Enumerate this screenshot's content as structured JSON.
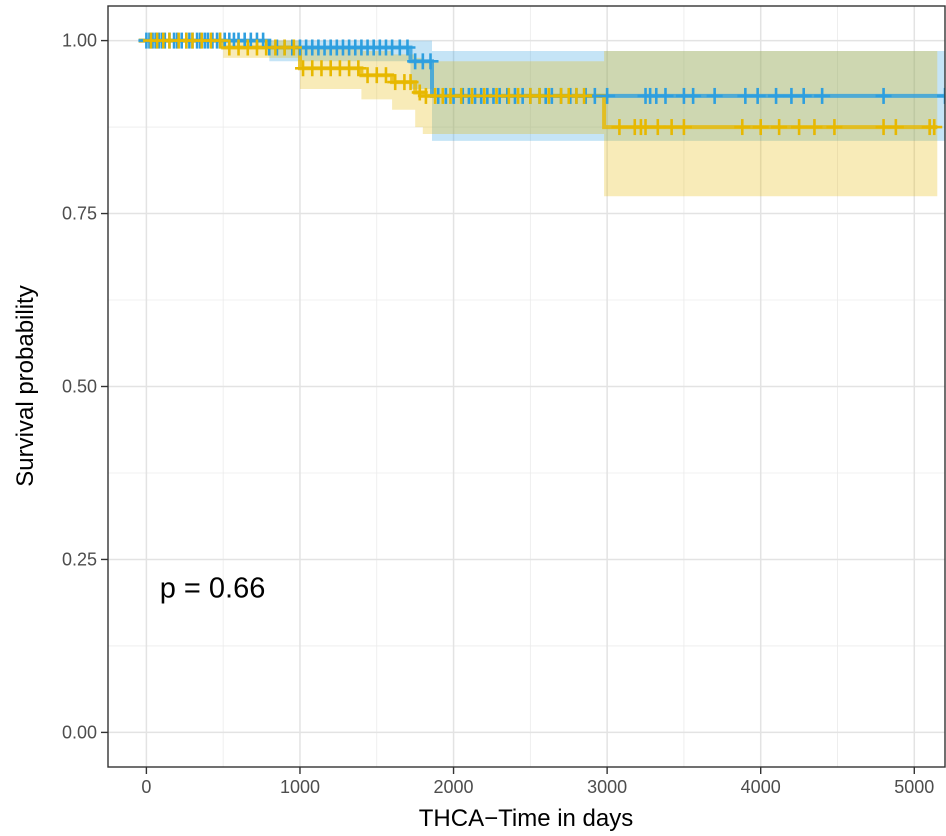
{
  "chart_data": {
    "type": "line",
    "xlabel": "THCA−Time in days",
    "ylabel": "Survival probability",
    "xlim": [
      -250,
      5200
    ],
    "ylim": [
      -0.05,
      1.05
    ],
    "x_ticks": [
      0,
      1000,
      2000,
      3000,
      4000,
      5000
    ],
    "x_tick_labels": [
      "0",
      "1000",
      "2000",
      "3000",
      "4000",
      "5000"
    ],
    "y_ticks": [
      0,
      0.25,
      0.5,
      0.75,
      1.0
    ],
    "y_tick_labels": [
      "0.00",
      "0.25",
      "0.50",
      "0.75",
      "1.00"
    ],
    "grid": true,
    "annotation": "p = 0.66",
    "annotation_at": [
      100,
      0.195
    ],
    "series": [
      {
        "color": "#2E9FDF",
        "band_color": "#2E9FDF",
        "steps": [
          [
            -50,
            1.0
          ],
          [
            800,
            0.99
          ],
          [
            1720,
            0.97
          ],
          [
            1860,
            0.92
          ],
          [
            5200,
            0.92
          ]
        ],
        "band": [
          [
            -50,
            1.0,
            1.0
          ],
          [
            800,
            0.97,
            1.0
          ],
          [
            1720,
            0.93,
            1.0
          ],
          [
            1860,
            0.855,
            0.985
          ],
          [
            5200,
            0.855,
            0.985
          ]
        ],
        "censor_x": [
          0,
          20,
          40,
          60,
          80,
          100,
          120,
          150,
          180,
          200,
          230,
          260,
          280,
          300,
          330,
          350,
          380,
          400,
          430,
          460,
          480,
          510,
          540,
          570,
          600,
          640,
          680,
          720,
          760,
          800,
          850,
          900,
          950,
          1000,
          1040,
          1080,
          1120,
          1160,
          1200,
          1240,
          1280,
          1320,
          1360,
          1400,
          1440,
          1480,
          1520,
          1560,
          1600,
          1650,
          1700,
          1750,
          1800,
          1850,
          1900,
          1950,
          2000,
          2060,
          2100,
          2140,
          2180,
          2220,
          2260,
          2300,
          2350,
          2400,
          2450,
          2500,
          2560,
          2600,
          2640,
          2700,
          2760,
          2800,
          2860,
          2920,
          3000,
          3250,
          3280,
          3320,
          3380,
          3500,
          3560,
          3700,
          3900,
          3980,
          4100,
          4200,
          4280,
          4400,
          4800,
          5200
        ]
      },
      {
        "color": "#E7B800",
        "band_color": "#E7B800",
        "steps": [
          [
            -50,
            1.0
          ],
          [
            500,
            0.99
          ],
          [
            1000,
            0.96
          ],
          [
            1400,
            0.95
          ],
          [
            1600,
            0.94
          ],
          [
            1750,
            0.925
          ],
          [
            1800,
            0.92
          ],
          [
            2980,
            0.875
          ],
          [
            5150,
            0.875
          ]
        ],
        "band": [
          [
            -50,
            1.0,
            1.0
          ],
          [
            500,
            0.975,
            1.0
          ],
          [
            1000,
            0.93,
            0.99
          ],
          [
            1400,
            0.915,
            0.985
          ],
          [
            1600,
            0.9,
            0.98
          ],
          [
            1750,
            0.875,
            0.975
          ],
          [
            1800,
            0.865,
            0.97
          ],
          [
            2980,
            0.775,
            0.985
          ],
          [
            5150,
            0.775,
            0.985
          ]
        ],
        "censor_x": [
          30,
          70,
          110,
          150,
          210,
          260,
          300,
          360,
          420,
          480,
          540,
          600,
          660,
          720,
          780,
          840,
          900,
          960,
          1020,
          1080,
          1140,
          1200,
          1260,
          1320,
          1380,
          1440,
          1500,
          1560,
          1620,
          1680,
          1720,
          1780,
          1820,
          1880,
          1930,
          1980,
          2050,
          2120,
          2200,
          2280,
          2360,
          2420,
          2500,
          2560,
          2620,
          2700,
          2750,
          2800,
          2850,
          3080,
          3180,
          3220,
          3250,
          3330,
          3420,
          3500,
          3880,
          4000,
          4120,
          4250,
          4350,
          4480,
          4800,
          4880,
          5100,
          5130
        ]
      }
    ]
  }
}
